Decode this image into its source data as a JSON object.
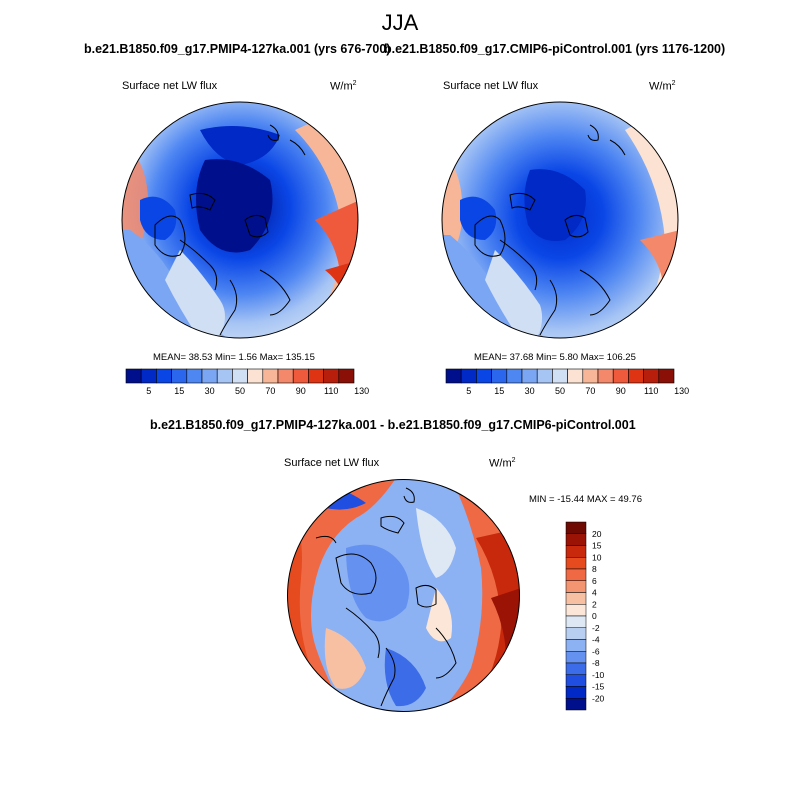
{
  "figure": {
    "season": "JJA"
  },
  "palette_abs": [
    "#00108c",
    "#0029c6",
    "#0a46e6",
    "#2a66ee",
    "#4e86f2",
    "#7aa6f4",
    "#a6c4f4",
    "#d0dff4",
    "#fbe2d2",
    "#f7b697",
    "#f3886a",
    "#ef5a3c",
    "#de3414",
    "#b71e0c",
    "#8a0f06"
  ],
  "palette_diff": [
    "#00108c",
    "#0029c6",
    "#1f4ee0",
    "#3d6ce8",
    "#6592f0",
    "#8cb2f4",
    "#b8cff2",
    "#dde8f4",
    "#fbe6d8",
    "#f8c0a2",
    "#f49572",
    "#ef6a44",
    "#e64a1f",
    "#c8290c",
    "#9b1305",
    "#6e0a02"
  ],
  "panels": [
    {
      "case": "b.e21.B1850.f09_g17.PMIP4-127ka.001 (yrs 676-700)",
      "variable": "Surface net LW flux",
      "units_base": "W/m",
      "units_exp": "2",
      "stats": "MEAN=  38.53  Min=   1.56  Max= 135.15",
      "colorbar_ticks": [
        "5",
        "15",
        "30",
        "50",
        "70",
        "90",
        "110",
        "130"
      ]
    },
    {
      "case": "b.e21.B1850.f09_g17.CMIP6-piControl.001 (yrs 1176-1200)",
      "variable": "Surface net LW flux",
      "units_base": "W/m",
      "units_exp": "2",
      "stats": "MEAN=  37.68  Min=   5.80  Max= 106.25",
      "colorbar_ticks": [
        "5",
        "15",
        "30",
        "50",
        "70",
        "90",
        "110",
        "130"
      ]
    }
  ],
  "difference": {
    "title": "b.e21.B1850.f09_g17.PMIP4-127ka.001 - b.e21.B1850.f09_g17.CMIP6-piControl.001",
    "variable": "Surface net LW flux",
    "units_base": "W/m",
    "units_exp": "2",
    "minmax": "MIN = -15.44 MAX =  49.76",
    "colorbar_ticks": [
      "20",
      "15",
      "10",
      "8",
      "6",
      "4",
      "2",
      "0",
      "-2",
      "-4",
      "-6",
      "-8",
      "-10",
      "-15",
      "-20"
    ]
  }
}
